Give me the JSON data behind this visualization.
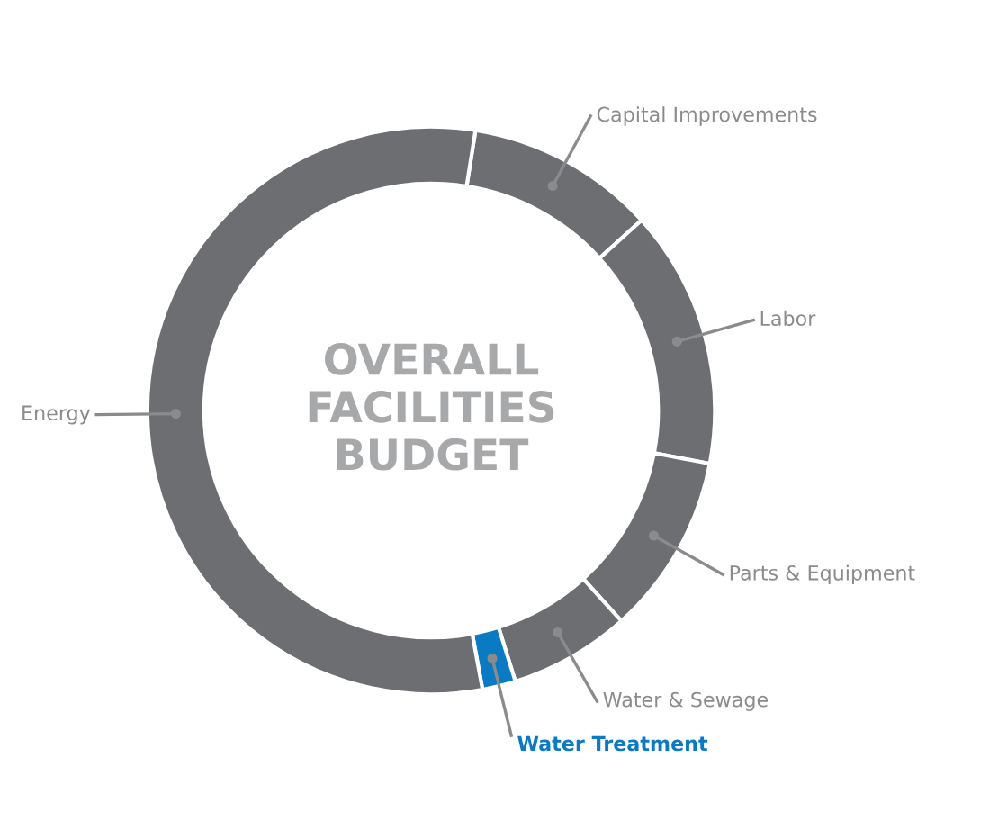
{
  "chart_data": {
    "type": "donut",
    "title": "OVERALL\nFACILITIES\nBUDGET",
    "categories": [
      "Capital Improvements",
      "Labor",
      "Parts & Equipment",
      "Water & Sewage",
      "Water Treatment",
      "Energy"
    ],
    "values": [
      10.8,
      14.7,
      10.3,
      6.9,
      1.9,
      55.4
    ],
    "colors": [
      "#6d6e71",
      "#6d6e71",
      "#6d6e71",
      "#6d6e71",
      "#0a7ac2",
      "#6d6e71"
    ]
  }
}
